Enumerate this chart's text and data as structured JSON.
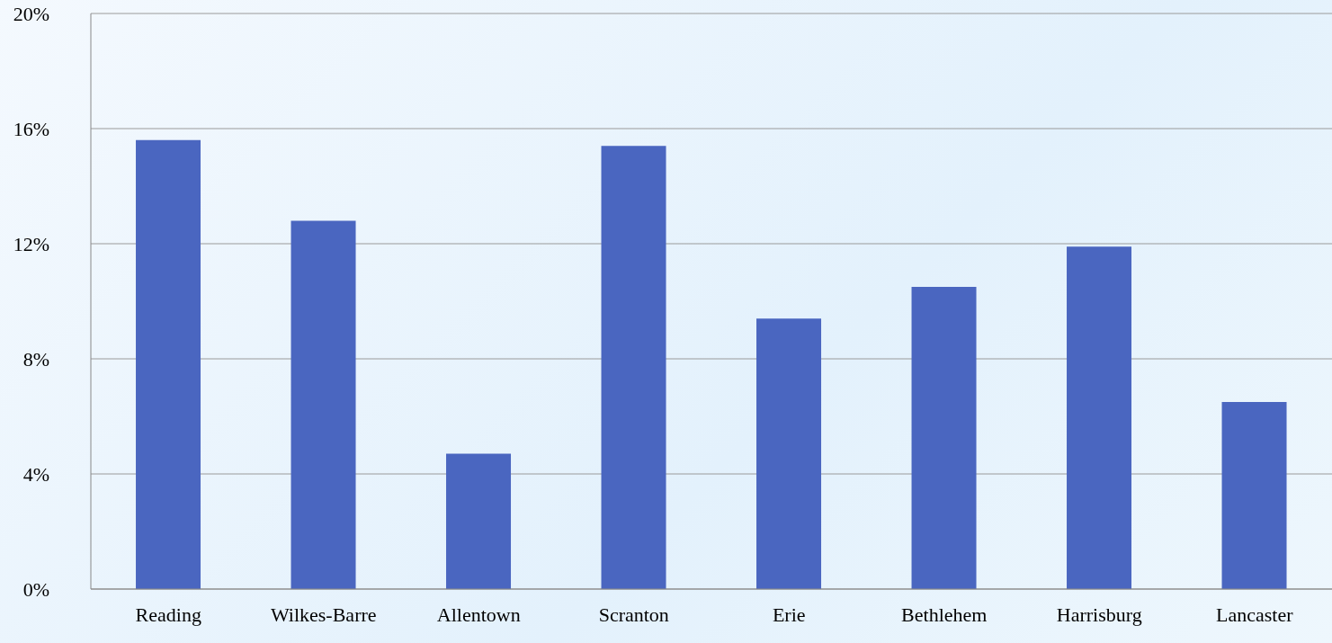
{
  "chart_data": {
    "type": "bar",
    "categories": [
      "Reading",
      "Wilkes-Barre",
      "Allentown",
      "Scranton",
      "Erie",
      "Bethlehem",
      "Harrisburg",
      "Lancaster"
    ],
    "values": [
      15.6,
      12.8,
      4.7,
      15.4,
      9.4,
      10.5,
      11.9,
      6.5
    ],
    "color": "#4a66c0",
    "ylim": [
      0,
      20
    ],
    "yticks": [
      {
        "value": 0,
        "label": "0%"
      },
      {
        "value": 4,
        "label": "4%"
      },
      {
        "value": 8,
        "label": "8%"
      },
      {
        "value": 12,
        "label": "12%"
      },
      {
        "value": 16,
        "label": "16%"
      },
      {
        "value": 20,
        "label": "20%"
      }
    ],
    "grid": "y"
  }
}
